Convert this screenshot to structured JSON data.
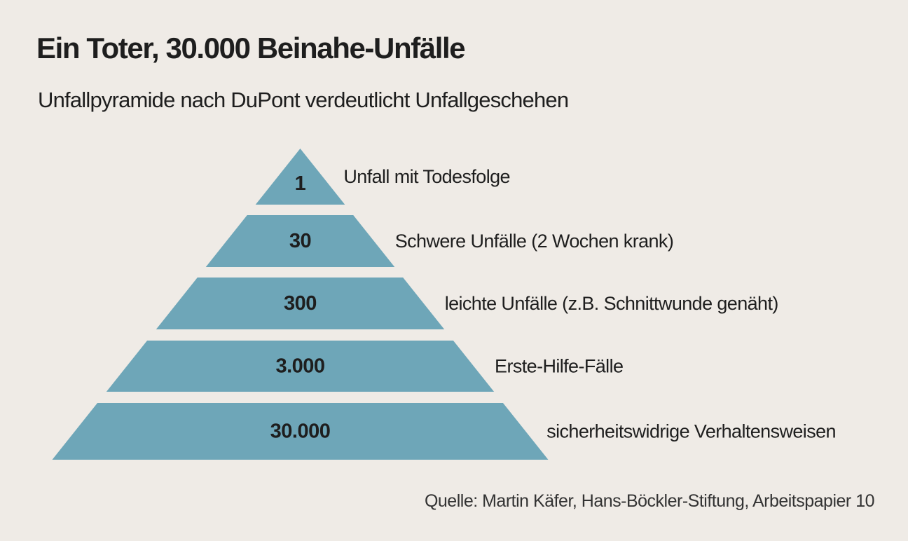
{
  "header": {
    "title": "Ein Toter, 30.000 Beinahe-Unfälle",
    "subtitle": "Unfallpyramide nach DuPont verdeutlicht Unfallgeschehen"
  },
  "pyramid": {
    "fill_color": "#6ea6b8",
    "levels": [
      {
        "count": "1",
        "label": "Unfall mit Todesfolge"
      },
      {
        "count": "30",
        "label": "Schwere Unfälle (2 Wochen krank)"
      },
      {
        "count": "300",
        "label": "leichte Unfälle (z.B. Schnittwunde genäht)"
      },
      {
        "count": "3.000",
        "label": "Erste-Hilfe-Fälle"
      },
      {
        "count": "30.000",
        "label": "sicherheitswidrige Verhaltensweisen"
      }
    ]
  },
  "footer": {
    "source": "Quelle: Martin Käfer, Hans-Böckler-Stiftung, Arbeitspapier 10"
  }
}
